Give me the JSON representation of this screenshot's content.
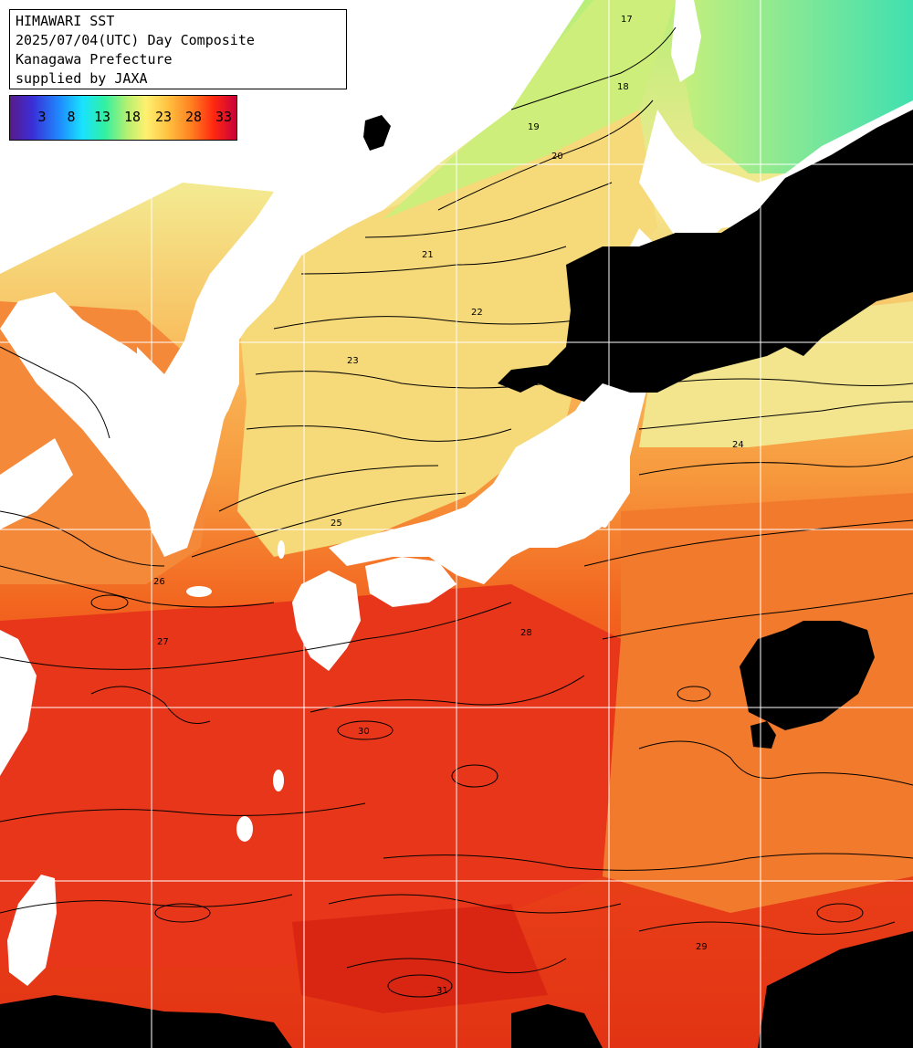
{
  "header": {
    "line1": "HIMAWARI SST",
    "line2": "2025/07/04(UTC) Day Composite",
    "line3": "Kanagawa Prefecture",
    "line4": "supplied by JAXA"
  },
  "legend": {
    "ticks": [
      "3",
      "8",
      "13",
      "18",
      "23",
      "28",
      "33"
    ]
  },
  "colors": {
    "land": "#ffffff",
    "cloud": "#000000",
    "grid": "#ffffff",
    "contour": "#000000",
    "sst_cold": "#3fd6a0",
    "sst_cool": "#b6ee78",
    "sst_mild": "#f6e58a",
    "sst_warm": "#f7a748",
    "sst_hot": "#f3601e",
    "sst_very_hot": "#e8321a",
    "sst_max": "#d01e14"
  },
  "contour_labels": [
    "17",
    "18",
    "19",
    "20",
    "21",
    "22",
    "23",
    "24",
    "25",
    "26",
    "27",
    "28",
    "29",
    "30",
    "31"
  ]
}
